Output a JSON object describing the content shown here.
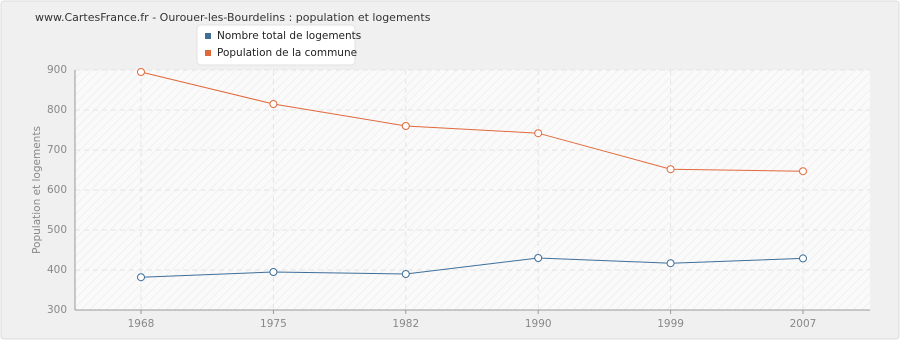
{
  "chart_data": {
    "type": "line",
    "title": "www.CartesFrance.fr - Ourouer-les-Bourdelins : population et logements",
    "y_label": "Population et logements",
    "categories": [
      "1968",
      "1975",
      "1982",
      "1990",
      "1999",
      "2007"
    ],
    "series": [
      {
        "name": "Nombre total de logements",
        "color": "#3f6e99",
        "values": [
          382,
          395,
          390,
          430,
          417,
          429
        ]
      },
      {
        "name": "Population de la commune",
        "color": "#e0693b",
        "values": [
          895,
          815,
          760,
          742,
          652,
          647
        ]
      }
    ],
    "ylim": [
      300,
      900
    ],
    "yticks": [
      300,
      400,
      500,
      600,
      700,
      800,
      900
    ],
    "grid": true,
    "legend": "top"
  }
}
